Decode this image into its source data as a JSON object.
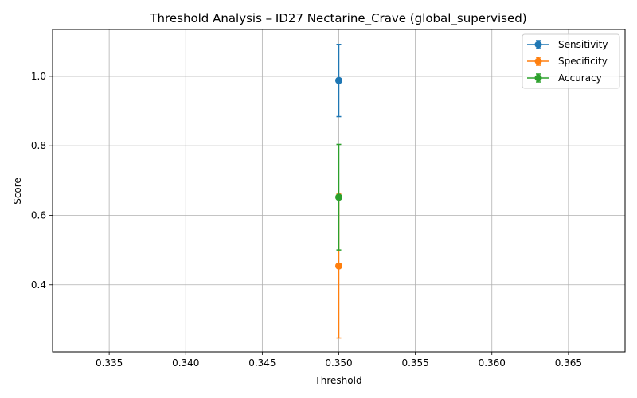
{
  "chart_data": {
    "type": "scatter",
    "title": "Threshold Analysis – ID27 Nectarine_Crave (global_supervised)",
    "xlabel": "Threshold",
    "ylabel": "Score",
    "xlim": [
      0.3313,
      0.3687
    ],
    "ylim": [
      0.207,
      1.135
    ],
    "xticks": [
      0.335,
      0.34,
      0.345,
      0.35,
      0.355,
      0.36,
      0.365
    ],
    "xtick_labels": [
      "0.335",
      "0.340",
      "0.345",
      "0.350",
      "0.355",
      "0.360",
      "0.365"
    ],
    "yticks": [
      0.4,
      0.6,
      0.8,
      1.0
    ],
    "ytick_labels": [
      "0.4",
      "0.6",
      "0.8",
      "1.0"
    ],
    "grid": true,
    "legend_position": "top-right",
    "series": [
      {
        "name": "Sensitivity",
        "color": "#1f77b4",
        "x": [
          0.35
        ],
        "y": [
          0.988
        ],
        "err": [
          0.104
        ]
      },
      {
        "name": "Specificity",
        "color": "#ff7f0e",
        "x": [
          0.35
        ],
        "y": [
          0.454
        ],
        "err": [
          0.207
        ]
      },
      {
        "name": "Accuracy",
        "color": "#2ca02c",
        "x": [
          0.35
        ],
        "y": [
          0.652
        ],
        "err": [
          0.152
        ]
      }
    ]
  }
}
